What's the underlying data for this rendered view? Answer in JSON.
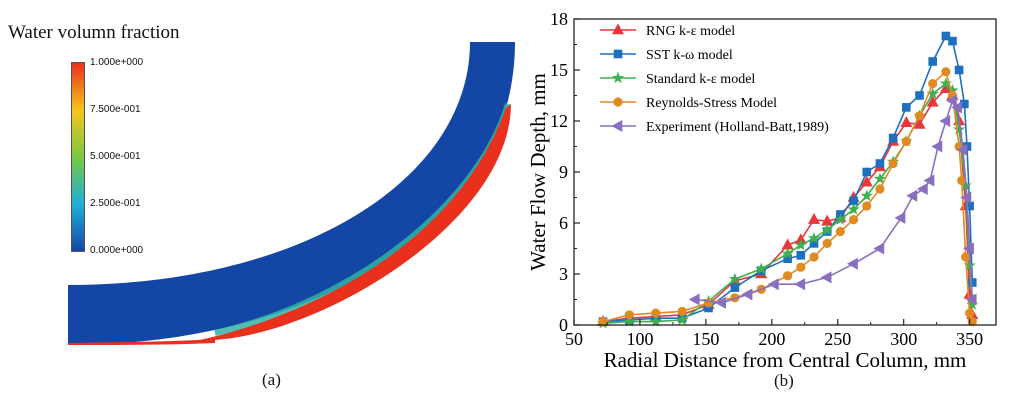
{
  "panel_a": {
    "title": "Water volumn fraction",
    "colorbar": {
      "labels": [
        "1.000e+000",
        "7.500e-001",
        "5.000e-001",
        "2.500e-001",
        "0.000e+000"
      ],
      "colors": [
        "#e8301c",
        "#f5c51e",
        "#7cc842",
        "#1fb0d8",
        "#1446a6"
      ]
    },
    "caption": "(a)"
  },
  "panel_b": {
    "caption": "(b)"
  },
  "chart_data": {
    "type": "line",
    "xlabel": "Radial Distance from Central Column, mm",
    "ylabel": "Water Flow Depth, mm",
    "xlim": [
      50,
      370
    ],
    "ylim": [
      0,
      18
    ],
    "xticks": [
      50,
      100,
      150,
      200,
      250,
      300,
      350
    ],
    "yticks": [
      0,
      3,
      6,
      9,
      12,
      15,
      18
    ],
    "grid": false,
    "legend_position": "top-left",
    "series": [
      {
        "name": "RNG k-ε model",
        "color": "#e8373b",
        "marker": "triangle-up",
        "x": [
          72,
          92,
          112,
          132,
          152,
          172,
          192,
          212,
          222,
          232,
          242,
          252,
          262,
          272,
          282,
          292,
          302,
          312,
          322,
          332,
          337,
          342,
          347,
          350,
          352
        ],
        "y": [
          0.2,
          0.4,
          0.5,
          0.6,
          1.2,
          2.6,
          3.0,
          4.7,
          5.0,
          6.2,
          6.1,
          6.3,
          7.5,
          8.4,
          9.3,
          10.8,
          11.9,
          11.8,
          13.1,
          13.9,
          13.5,
          12.0,
          7.0,
          1.8,
          0.6
        ]
      },
      {
        "name": "SST k-ω model",
        "color": "#1f6fc0",
        "marker": "square",
        "x": [
          72,
          92,
          112,
          132,
          152,
          172,
          192,
          212,
          222,
          232,
          242,
          252,
          262,
          272,
          282,
          292,
          302,
          312,
          322,
          332,
          337,
          342,
          346,
          348,
          350,
          352
        ],
        "y": [
          0.2,
          0.3,
          0.4,
          0.4,
          1.0,
          2.2,
          3.2,
          3.9,
          4.1,
          4.8,
          5.5,
          6.5,
          7.3,
          9.0,
          9.5,
          11.0,
          12.8,
          13.5,
          15.5,
          17.0,
          16.7,
          15.0,
          13.0,
          10.5,
          7.0,
          2.5
        ]
      },
      {
        "name": "Standard k-ε model",
        "color": "#3fb04f",
        "marker": "star",
        "x": [
          72,
          92,
          112,
          132,
          152,
          172,
          192,
          212,
          222,
          232,
          242,
          252,
          262,
          272,
          282,
          292,
          302,
          312,
          322,
          332,
          337,
          342,
          347,
          350,
          352
        ],
        "y": [
          0.1,
          0.2,
          0.2,
          0.3,
          1.4,
          2.7,
          3.3,
          4.2,
          4.7,
          5.1,
          5.6,
          6.2,
          6.8,
          7.6,
          8.6,
          9.6,
          10.8,
          12.3,
          13.6,
          14.2,
          13.8,
          11.5,
          8.2,
          3.5,
          1.2
        ]
      },
      {
        "name": "Reynolds-Stress Model",
        "color": "#e08a24",
        "marker": "circle",
        "x": [
          72,
          92,
          112,
          132,
          152,
          172,
          192,
          212,
          222,
          232,
          242,
          252,
          262,
          272,
          282,
          292,
          302,
          312,
          322,
          332,
          337,
          342,
          344,
          347,
          350,
          352
        ],
        "y": [
          0.2,
          0.6,
          0.7,
          0.8,
          1.3,
          1.6,
          2.1,
          2.9,
          3.4,
          4.0,
          4.8,
          5.5,
          6.2,
          7.0,
          8.0,
          9.5,
          10.8,
          12.3,
          14.2,
          14.9,
          13.5,
          10.5,
          8.5,
          4.0,
          0.7,
          0.2
        ]
      },
      {
        "name": "Experiment (Holland-Batt,1989)",
        "color": "#8a6fc0",
        "marker": "triangle-left",
        "x": [
          142,
          162,
          182,
          202,
          222,
          242,
          262,
          282,
          298,
          307,
          315,
          320,
          326,
          332,
          337,
          341,
          345,
          348,
          350,
          352
        ],
        "y": [
          1.5,
          1.3,
          1.8,
          2.4,
          2.4,
          2.8,
          3.6,
          4.5,
          6.3,
          7.6,
          8.0,
          8.5,
          10.5,
          12.0,
          13.2,
          12.8,
          10.3,
          7.5,
          4.5,
          1.5
        ]
      }
    ]
  }
}
